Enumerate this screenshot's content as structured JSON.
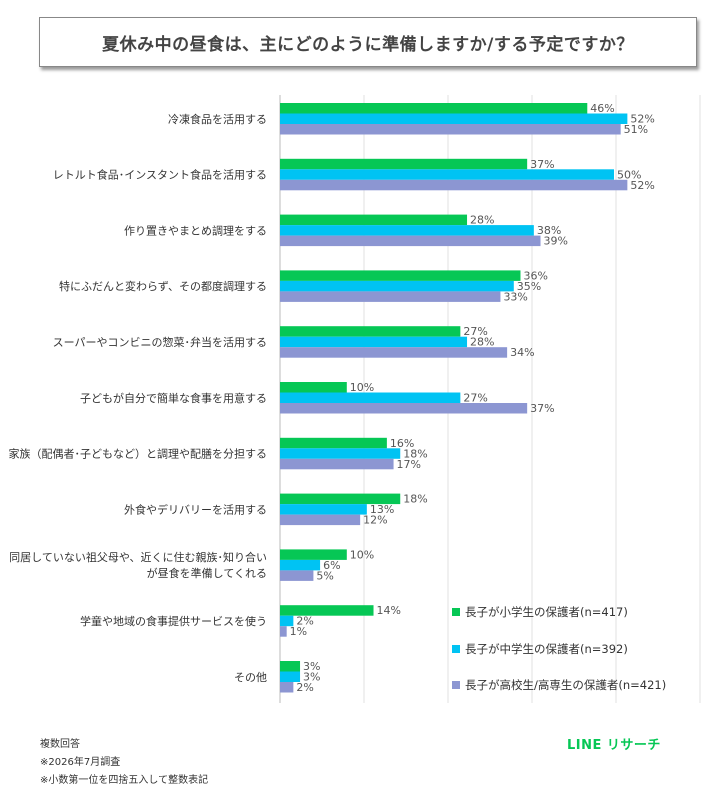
{
  "title": "夏休み中の昼食は、主にどのように準備しますか/する予定ですか？",
  "chart_data": {
    "type": "bar",
    "orientation": "horizontal",
    "categories": [
      [
        "冷凍食品を活用する"
      ],
      [
        "レトルト食品･インスタント食品を活用する"
      ],
      [
        "作り置きやまとめ調理をする"
      ],
      [
        "特にふだんと変わらず、その都度調理する"
      ],
      [
        "スーパーやコンビニの惣菜･弁当を活用する"
      ],
      [
        "子どもが自分で簡単な食事を用意する"
      ],
      [
        "家族（配偶者･子どもなど）と調理や配膳を分担する"
      ],
      [
        "外食やデリバリーを活用する"
      ],
      [
        "同居していない祖父母や、近くに住む親族･知り合い",
        "が昼食を準備してくれる"
      ],
      [
        "学童や地域の食事提供サービスを使う"
      ],
      [
        "その他"
      ]
    ],
    "series": [
      {
        "name": "長子が小学生の保護者(n=417)",
        "color": "#06c755",
        "values": [
          46,
          37,
          28,
          36,
          27,
          10,
          16,
          18,
          10,
          14,
          3
        ]
      },
      {
        "name": "長子が中学生の保護者(n=392)",
        "color": "#00c3f3",
        "values": [
          52,
          50,
          38,
          35,
          28,
          27,
          18,
          13,
          6,
          2,
          3
        ]
      },
      {
        "name": "長子が高校生/高専生の保護者(n=421)",
        "color": "#8c96d2",
        "values": [
          51,
          52,
          39,
          33,
          34,
          37,
          17,
          12,
          5,
          1,
          2
        ]
      }
    ],
    "value_suffix": "%",
    "xlim": [
      0,
      100
    ],
    "grid": true,
    "legend": "bottom-right"
  },
  "notes": [
    "複数回答",
    "※2026年7月調査",
    "※小数第一位を四捨五入して整数表記"
  ],
  "logo": "LINE リサーチ"
}
